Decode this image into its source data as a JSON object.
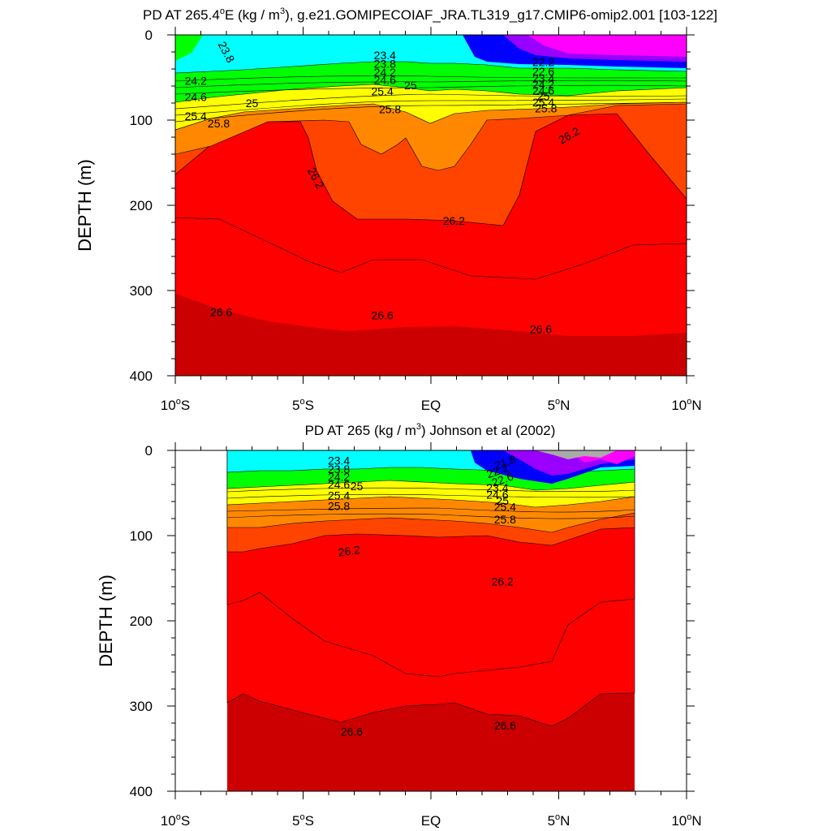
{
  "chart_data": [
    {
      "type": "contour",
      "title_main": "PD AT 265.4",
      "title_deg": "o",
      "title_mid": "E (kg / m",
      "title_exp": "3",
      "title_rest": "), g.e21.GOMIPECOIAF_JRA.TL319_g17.CMIP6-omip2.001 [103-122]",
      "ylabel": "DEPTH (m)",
      "xlim": [
        -10,
        10
      ],
      "ylim": [
        0,
        400
      ],
      "y_inverted": true,
      "x_ticks": [
        {
          "value": -10,
          "num": "10",
          "deg": "o",
          "hemi": "S"
        },
        {
          "value": -5,
          "num": "5",
          "deg": "o",
          "hemi": "S"
        },
        {
          "value": 0,
          "num": "EQ",
          "deg": "",
          "hemi": ""
        },
        {
          "value": 5,
          "num": "5",
          "deg": "o",
          "hemi": "N"
        },
        {
          "value": 10,
          "num": "10",
          "deg": "o",
          "hemi": "N"
        }
      ],
      "y_ticks": [
        {
          "value": 0,
          "label": "0"
        },
        {
          "value": 100,
          "label": "100"
        },
        {
          "value": 200,
          "label": "200"
        },
        {
          "value": 300,
          "label": "300"
        },
        {
          "value": 400,
          "label": "400"
        }
      ],
      "data_range_x": [
        -10,
        10
      ],
      "surface_depth": 5,
      "contour_labels": [
        {
          "x": -8.0,
          "y": 20,
          "text": "23.8",
          "rotate": 62
        },
        {
          "x": -1.8,
          "y": 24,
          "text": "23.4",
          "rotate": 0
        },
        {
          "x": -1.8,
          "y": 34,
          "text": "23.8",
          "rotate": 0
        },
        {
          "x": -1.8,
          "y": 44,
          "text": "24.2",
          "rotate": 0
        },
        {
          "x": -1.8,
          "y": 53,
          "text": "24.6",
          "rotate": 0
        },
        {
          "x": -0.8,
          "y": 59,
          "text": "25",
          "rotate": 0
        },
        {
          "x": -1.9,
          "y": 66,
          "text": "25.4",
          "rotate": 0
        },
        {
          "x": -1.6,
          "y": 87,
          "text": "25.8",
          "rotate": 0
        },
        {
          "x": -9.2,
          "y": 54,
          "text": "24.2",
          "rotate": 0
        },
        {
          "x": -9.2,
          "y": 73,
          "text": "24.6",
          "rotate": 0
        },
        {
          "x": -7.0,
          "y": 80,
          "text": "25",
          "rotate": 0
        },
        {
          "x": -9.2,
          "y": 95,
          "text": "25.4",
          "rotate": 0
        },
        {
          "x": -8.3,
          "y": 104,
          "text": "25.8",
          "rotate": 0
        },
        {
          "x": 4.4,
          "y": 32,
          "text": "22.2",
          "rotate": 0
        },
        {
          "x": 4.4,
          "y": 43,
          "text": "22.6",
          "rotate": 0
        },
        {
          "x": 4.4,
          "y": 51,
          "text": "23.4",
          "rotate": 0
        },
        {
          "x": 4.4,
          "y": 58,
          "text": "24.2",
          "rotate": 0
        },
        {
          "x": 4.4,
          "y": 65,
          "text": "24.6",
          "rotate": 0
        },
        {
          "x": 4.4,
          "y": 72,
          "text": "25",
          "rotate": 0
        },
        {
          "x": 4.4,
          "y": 79,
          "text": "25.4",
          "rotate": 0
        },
        {
          "x": 4.5,
          "y": 86,
          "text": "25.8",
          "rotate": 0
        },
        {
          "x": 5.4,
          "y": 118,
          "text": "26.2",
          "rotate": -30
        },
        {
          "x": -4.5,
          "y": 168,
          "text": "26.2",
          "rotate": 62
        },
        {
          "x": 0.9,
          "y": 218,
          "text": "26.2",
          "rotate": 0
        },
        {
          "x": -8.2,
          "y": 325,
          "text": "26.6",
          "rotate": 0
        },
        {
          "x": -1.9,
          "y": 329,
          "text": "26.6",
          "rotate": 0
        },
        {
          "x": 4.3,
          "y": 345,
          "text": "26.6",
          "rotate": 0
        }
      ]
    },
    {
      "type": "contour",
      "title_main": "PD AT 265 (kg / m",
      "title_deg": "",
      "title_mid": "",
      "title_exp": "3",
      "title_rest": ") Johnson et al (2002)",
      "ylabel": "DEPTH (m)",
      "xlim": [
        -10,
        10
      ],
      "ylim": [
        0,
        400
      ],
      "y_inverted": true,
      "x_ticks": [
        {
          "value": -10,
          "num": "10",
          "deg": "o",
          "hemi": "S"
        },
        {
          "value": -5,
          "num": "5",
          "deg": "o",
          "hemi": "S"
        },
        {
          "value": 0,
          "num": "EQ",
          "deg": "",
          "hemi": ""
        },
        {
          "value": 5,
          "num": "5",
          "deg": "o",
          "hemi": "N"
        },
        {
          "value": 10,
          "num": "10",
          "deg": "o",
          "hemi": "N"
        }
      ],
      "y_ticks": [
        {
          "value": 0,
          "label": "0"
        },
        {
          "value": 100,
          "label": "100"
        },
        {
          "value": 200,
          "label": "200"
        },
        {
          "value": 300,
          "label": "300"
        },
        {
          "value": 400,
          "label": "400"
        }
      ],
      "data_range_x": [
        -8,
        8
      ],
      "surface_depth": 5,
      "contour_labels": [
        {
          "x": -3.6,
          "y": 12,
          "text": "23.4",
          "rotate": 0
        },
        {
          "x": -3.6,
          "y": 22,
          "text": "23.8",
          "rotate": 0
        },
        {
          "x": -3.6,
          "y": 31,
          "text": "24.2",
          "rotate": 0
        },
        {
          "x": -3.6,
          "y": 40,
          "text": "24.6",
          "rotate": 0
        },
        {
          "x": -2.9,
          "y": 42,
          "text": "25",
          "rotate": 0
        },
        {
          "x": -3.6,
          "y": 53,
          "text": "25.4",
          "rotate": 0
        },
        {
          "x": -3.6,
          "y": 65,
          "text": "25.8",
          "rotate": 0
        },
        {
          "x": 2.9,
          "y": 14,
          "text": "21.8",
          "rotate": -20
        },
        {
          "x": 2.6,
          "y": 24,
          "text": "22.2",
          "rotate": -20
        },
        {
          "x": 2.8,
          "y": 34,
          "text": "22.6",
          "rotate": -20
        },
        {
          "x": 2.6,
          "y": 44,
          "text": "23.4",
          "rotate": 0
        },
        {
          "x": 2.6,
          "y": 52,
          "text": "24.6",
          "rotate": 0
        },
        {
          "x": 2.8,
          "y": 59,
          "text": "25",
          "rotate": 0
        },
        {
          "x": 2.9,
          "y": 66,
          "text": "25.4",
          "rotate": 0
        },
        {
          "x": 2.9,
          "y": 81,
          "text": "25.8",
          "rotate": 0
        },
        {
          "x": -3.2,
          "y": 118,
          "text": "26.2",
          "rotate": -8
        },
        {
          "x": 2.8,
          "y": 154,
          "text": "26.2",
          "rotate": 0
        },
        {
          "x": -3.1,
          "y": 330,
          "text": "26.6",
          "rotate": 0
        },
        {
          "x": 2.9,
          "y": 323,
          "text": "26.6",
          "rotate": 0
        }
      ]
    }
  ],
  "colors": {
    "magenta": "#ff00ff",
    "purple": "#9900ff",
    "blue": "#0000ff",
    "cyan": "#00ffff",
    "green": "#00ff00",
    "yellow": "#ffff00",
    "orange": "#ff8800",
    "red_orange": "#ff4400",
    "red": "#ff0000",
    "dark_red": "#cc0000",
    "gray": "#aaaaaa"
  }
}
